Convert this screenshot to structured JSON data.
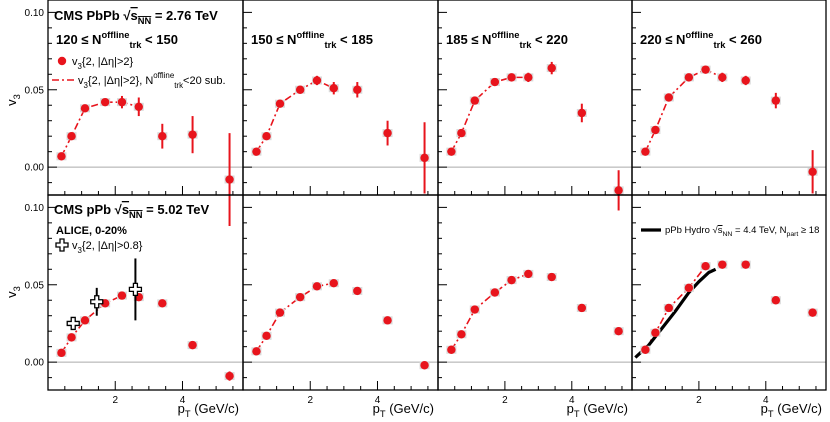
{
  "chart_data": {
    "type": "scatter",
    "ylabel": "v3",
    "xlabel": "pT (GeV/c)",
    "xlim": [
      0,
      5.8
    ],
    "ylim": [
      -0.018,
      0.108
    ],
    "xticks": [
      2,
      4
    ],
    "yticks": [
      0.0,
      0.05,
      0.1
    ],
    "ytick_labels": [
      "0.00",
      "0.05",
      "0.10"
    ],
    "colors": {
      "data": "#e8141c",
      "fit": "#e8141c",
      "alice": "#000000",
      "hydro": "#000000"
    },
    "top_title": {
      "system": "CMS PbPb",
      "energy": "= 2.76 TeV",
      "sqrt": "s",
      "sqrt_sub": "NN"
    },
    "bottom_title": {
      "system": "CMS pPb",
      "energy": "= 5.02 TeV",
      "sqrt": "s",
      "sqrt_sub": "NN"
    },
    "top_legend": {
      "marker_label": "v3{2, |Δη|>2}",
      "line_label": "v3{2, |Δη|>2}, Ntrk offline<20 sub."
    },
    "bottom_legend": {
      "alice_title": "ALICE, 0-20%",
      "alice_label": "v3{2, |Δη|>0.8}"
    },
    "hydro_label": "pPb Hydro √sNN = 4.4 TeV, Npart ≥ 18",
    "panels": [
      {
        "id": "top-1",
        "range": "120 ≤ Ntrk offline < 150",
        "points": [
          {
            "x": 0.4,
            "y": 0.007,
            "e": 0.001
          },
          {
            "x": 0.7,
            "y": 0.02,
            "e": 0.0015
          },
          {
            "x": 1.1,
            "y": 0.038,
            "e": 0.002
          },
          {
            "x": 1.7,
            "y": 0.042,
            "e": 0.002
          },
          {
            "x": 2.2,
            "y": 0.042,
            "e": 0.004
          },
          {
            "x": 2.7,
            "y": 0.039,
            "e": 0.006
          },
          {
            "x": 3.4,
            "y": 0.02,
            "e": 0.008
          },
          {
            "x": 4.3,
            "y": 0.021,
            "e": 0.012
          },
          {
            "x": 5.4,
            "y": -0.008,
            "e": 0.03
          }
        ],
        "fit": [
          [
            0.4,
            0.007
          ],
          [
            0.7,
            0.02
          ],
          [
            1.1,
            0.038
          ],
          [
            1.7,
            0.042
          ],
          [
            2.2,
            0.042
          ],
          [
            2.7,
            0.039
          ]
        ]
      },
      {
        "id": "top-2",
        "range": "150 ≤ Ntrk offline < 185",
        "points": [
          {
            "x": 0.4,
            "y": 0.01,
            "e": 0.001
          },
          {
            "x": 0.7,
            "y": 0.02,
            "e": 0.0015
          },
          {
            "x": 1.1,
            "y": 0.041,
            "e": 0.002
          },
          {
            "x": 1.7,
            "y": 0.05,
            "e": 0.002
          },
          {
            "x": 2.2,
            "y": 0.056,
            "e": 0.003
          },
          {
            "x": 2.7,
            "y": 0.051,
            "e": 0.004
          },
          {
            "x": 3.4,
            "y": 0.05,
            "e": 0.005
          },
          {
            "x": 4.3,
            "y": 0.022,
            "e": 0.008
          },
          {
            "x": 5.4,
            "y": 0.006,
            "e": 0.023
          }
        ],
        "fit": [
          [
            0.4,
            0.01
          ],
          [
            0.7,
            0.02
          ],
          [
            1.1,
            0.041
          ],
          [
            1.7,
            0.05
          ],
          [
            2.2,
            0.056
          ],
          [
            2.7,
            0.051
          ]
        ]
      },
      {
        "id": "top-3",
        "range": "185 ≤ Ntrk offline < 220",
        "points": [
          {
            "x": 0.4,
            "y": 0.01,
            "e": 0.001
          },
          {
            "x": 0.7,
            "y": 0.022,
            "e": 0.0015
          },
          {
            "x": 1.1,
            "y": 0.043,
            "e": 0.002
          },
          {
            "x": 1.7,
            "y": 0.055,
            "e": 0.002
          },
          {
            "x": 2.2,
            "y": 0.058,
            "e": 0.002
          },
          {
            "x": 2.7,
            "y": 0.058,
            "e": 0.003
          },
          {
            "x": 3.4,
            "y": 0.064,
            "e": 0.004
          },
          {
            "x": 4.3,
            "y": 0.035,
            "e": 0.006
          },
          {
            "x": 5.4,
            "y": -0.015,
            "e": 0.013
          }
        ],
        "fit": [
          [
            0.4,
            0.01
          ],
          [
            0.7,
            0.022
          ],
          [
            1.1,
            0.043
          ],
          [
            1.7,
            0.055
          ],
          [
            2.2,
            0.058
          ],
          [
            2.7,
            0.058
          ]
        ]
      },
      {
        "id": "top-4",
        "range": "220 ≤ Ntrk offline < 260",
        "points": [
          {
            "x": 0.4,
            "y": 0.01,
            "e": 0.001
          },
          {
            "x": 0.7,
            "y": 0.024,
            "e": 0.0015
          },
          {
            "x": 1.1,
            "y": 0.045,
            "e": 0.002
          },
          {
            "x": 1.7,
            "y": 0.058,
            "e": 0.002
          },
          {
            "x": 2.2,
            "y": 0.063,
            "e": 0.002
          },
          {
            "x": 2.7,
            "y": 0.058,
            "e": 0.003
          },
          {
            "x": 3.4,
            "y": 0.056,
            "e": 0.003
          },
          {
            "x": 4.3,
            "y": 0.043,
            "e": 0.005
          },
          {
            "x": 5.4,
            "y": -0.003,
            "e": 0.014
          }
        ],
        "fit": [
          [
            0.4,
            0.01
          ],
          [
            0.7,
            0.024
          ],
          [
            1.1,
            0.045
          ],
          [
            1.7,
            0.058
          ],
          [
            2.2,
            0.063
          ],
          [
            2.7,
            0.058
          ]
        ]
      },
      {
        "id": "bottom-1",
        "range": "",
        "points": [
          {
            "x": 0.4,
            "y": 0.006,
            "e": 0.001
          },
          {
            "x": 0.7,
            "y": 0.016,
            "e": 0.0015
          },
          {
            "x": 1.1,
            "y": 0.027,
            "e": 0.002
          },
          {
            "x": 1.7,
            "y": 0.038,
            "e": 0.002
          },
          {
            "x": 2.2,
            "y": 0.043,
            "e": 0.002
          },
          {
            "x": 2.7,
            "y": 0.042,
            "e": 0.002
          },
          {
            "x": 3.4,
            "y": 0.038,
            "e": 0.002
          },
          {
            "x": 4.3,
            "y": 0.011,
            "e": 0.002
          },
          {
            "x": 5.4,
            "y": -0.009,
            "e": 0.003
          }
        ],
        "fit": [
          [
            0.4,
            0.006
          ],
          [
            0.7,
            0.016
          ],
          [
            1.1,
            0.027
          ],
          [
            1.7,
            0.038
          ],
          [
            2.2,
            0.043
          ]
        ],
        "alice": [
          {
            "x": 0.75,
            "y": 0.025,
            "e": 0.004
          },
          {
            "x": 1.45,
            "y": 0.039,
            "e": 0.009
          },
          {
            "x": 2.6,
            "y": 0.047,
            "e": 0.02
          }
        ]
      },
      {
        "id": "bottom-2",
        "range": "",
        "points": [
          {
            "x": 0.4,
            "y": 0.007,
            "e": 0.001
          },
          {
            "x": 0.7,
            "y": 0.017,
            "e": 0.0015
          },
          {
            "x": 1.1,
            "y": 0.032,
            "e": 0.002
          },
          {
            "x": 1.7,
            "y": 0.042,
            "e": 0.002
          },
          {
            "x": 2.2,
            "y": 0.049,
            "e": 0.002
          },
          {
            "x": 2.7,
            "y": 0.051,
            "e": 0.002
          },
          {
            "x": 3.4,
            "y": 0.046,
            "e": 0.002
          },
          {
            "x": 4.3,
            "y": 0.027,
            "e": 0.002
          },
          {
            "x": 5.4,
            "y": -0.002,
            "e": 0.002
          }
        ],
        "fit": [
          [
            0.4,
            0.007
          ],
          [
            0.7,
            0.017
          ],
          [
            1.1,
            0.032
          ],
          [
            1.7,
            0.042
          ],
          [
            2.2,
            0.049
          ],
          [
            2.7,
            0.051
          ]
        ]
      },
      {
        "id": "bottom-3",
        "range": "",
        "points": [
          {
            "x": 0.4,
            "y": 0.008,
            "e": 0.001
          },
          {
            "x": 0.7,
            "y": 0.018,
            "e": 0.0015
          },
          {
            "x": 1.1,
            "y": 0.034,
            "e": 0.002
          },
          {
            "x": 1.7,
            "y": 0.045,
            "e": 0.002
          },
          {
            "x": 2.2,
            "y": 0.053,
            "e": 0.002
          },
          {
            "x": 2.7,
            "y": 0.057,
            "e": 0.002
          },
          {
            "x": 3.4,
            "y": 0.055,
            "e": 0.002
          },
          {
            "x": 4.3,
            "y": 0.035,
            "e": 0.002
          },
          {
            "x": 5.4,
            "y": 0.02,
            "e": 0.002
          }
        ],
        "fit": [
          [
            0.4,
            0.008
          ],
          [
            0.7,
            0.018
          ],
          [
            1.1,
            0.034
          ],
          [
            1.7,
            0.045
          ],
          [
            2.2,
            0.053
          ],
          [
            2.7,
            0.057
          ]
        ]
      },
      {
        "id": "bottom-4",
        "range": "",
        "points": [
          {
            "x": 0.4,
            "y": 0.008,
            "e": 0.001
          },
          {
            "x": 0.7,
            "y": 0.019,
            "e": 0.0015
          },
          {
            "x": 1.1,
            "y": 0.035,
            "e": 0.002
          },
          {
            "x": 1.7,
            "y": 0.048,
            "e": 0.002
          },
          {
            "x": 2.2,
            "y": 0.062,
            "e": 0.002
          },
          {
            "x": 2.7,
            "y": 0.063,
            "e": 0.002
          },
          {
            "x": 3.4,
            "y": 0.063,
            "e": 0.002
          },
          {
            "x": 4.3,
            "y": 0.04,
            "e": 0.002
          },
          {
            "x": 5.4,
            "y": 0.032,
            "e": 0.002
          }
        ],
        "fit": [
          [
            0.4,
            0.008
          ],
          [
            0.7,
            0.019
          ],
          [
            1.1,
            0.035
          ],
          [
            1.7,
            0.048
          ],
          [
            2.2,
            0.062
          ]
        ],
        "hydro": [
          [
            0.1,
            0.003
          ],
          [
            0.5,
            0.011
          ],
          [
            0.9,
            0.022
          ],
          [
            1.3,
            0.033
          ],
          [
            1.7,
            0.045
          ],
          [
            2.0,
            0.052
          ],
          [
            2.3,
            0.058
          ],
          [
            2.5,
            0.06
          ]
        ]
      }
    ]
  }
}
